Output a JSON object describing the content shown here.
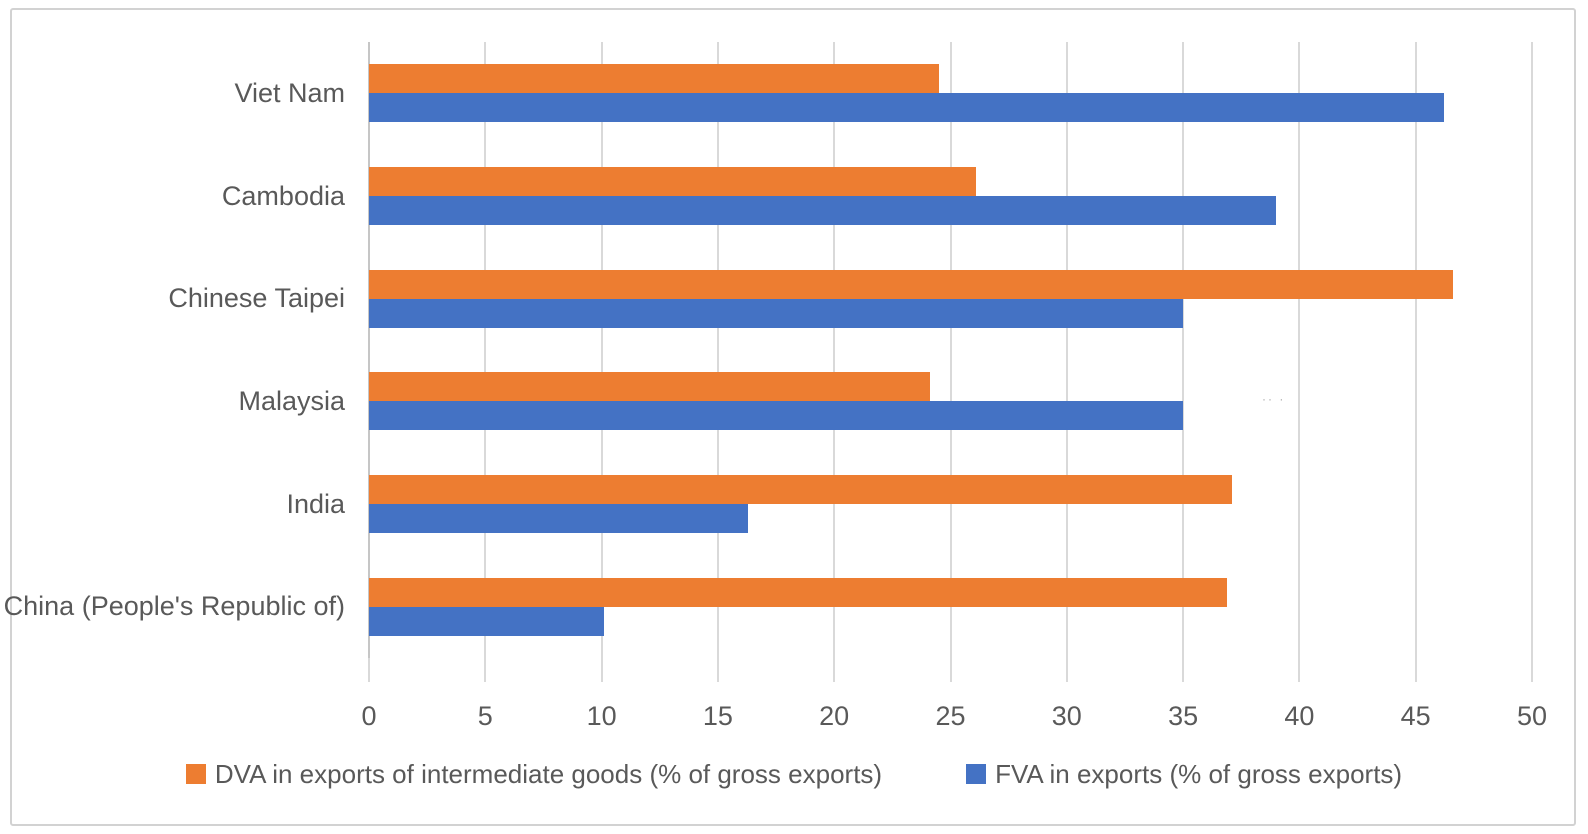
{
  "figure": {
    "background": "#FFFFFF",
    "border_color": "#D2D2D2",
    "gridline_color": "#D9D9D9",
    "axis_line_color": "#C6C6C6",
    "text_color": "#595959"
  },
  "chart_data": {
    "type": "bar",
    "orientation": "horizontal",
    "title": "",
    "categories": [
      "Viet Nam",
      "Cambodia",
      "Chinese Taipei",
      "Malaysia",
      "India",
      "China (People's Republic of)"
    ],
    "series": [
      {
        "name": "DVA in exports of intermediate goods (% of gross exports)",
        "color": "#ED7D31",
        "values": [
          24.5,
          26.1,
          46.6,
          24.1,
          37.1,
          36.9
        ]
      },
      {
        "name": "FVA in exports (% of gross exports)",
        "color": "#4472C4",
        "values": [
          46.2,
          39.0,
          35.0,
          35.0,
          16.3,
          10.1
        ]
      }
    ],
    "x_axis": {
      "min": 0,
      "max": 50,
      "tick_step": 5,
      "tick_labels": [
        "0",
        "5",
        "10",
        "15",
        "20",
        "25",
        "30",
        "35",
        "40",
        "45",
        "50"
      ]
    },
    "y_axis": {
      "label": ""
    },
    "gridlines": "vertical",
    "legend_position": "bottom",
    "bar_order_in_group": [
      "DVA top",
      "FVA bottom"
    ]
  },
  "artifact": {
    "text": "·· ·"
  }
}
